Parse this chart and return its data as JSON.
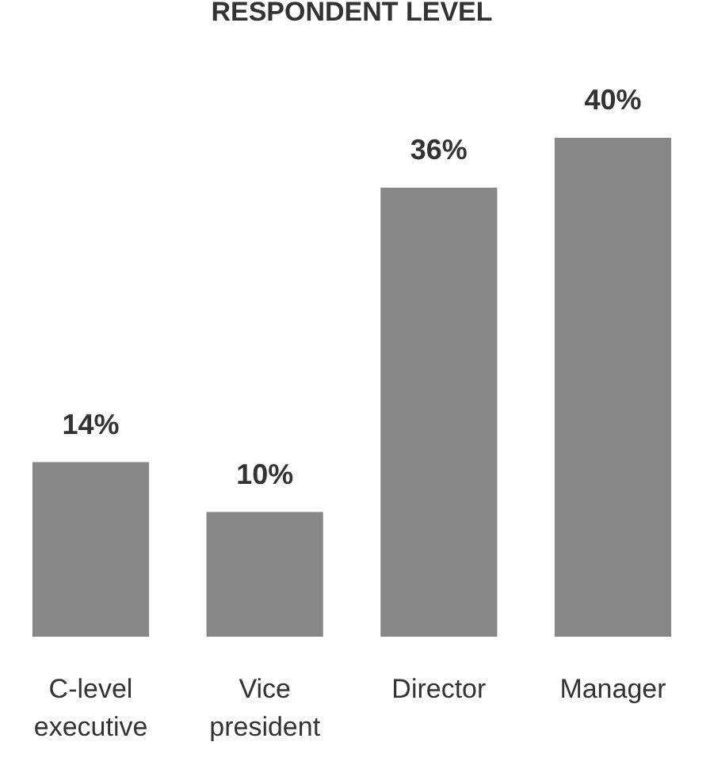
{
  "chart_data": {
    "type": "bar",
    "title": "RESPONDENT LEVEL",
    "categories": [
      "C-level executive",
      "Vice president",
      "Director",
      "Manager"
    ],
    "values": [
      14,
      10,
      36,
      40
    ],
    "color": "#878787",
    "value_labels": [
      "14%",
      "10%",
      "36%",
      "40%"
    ]
  }
}
